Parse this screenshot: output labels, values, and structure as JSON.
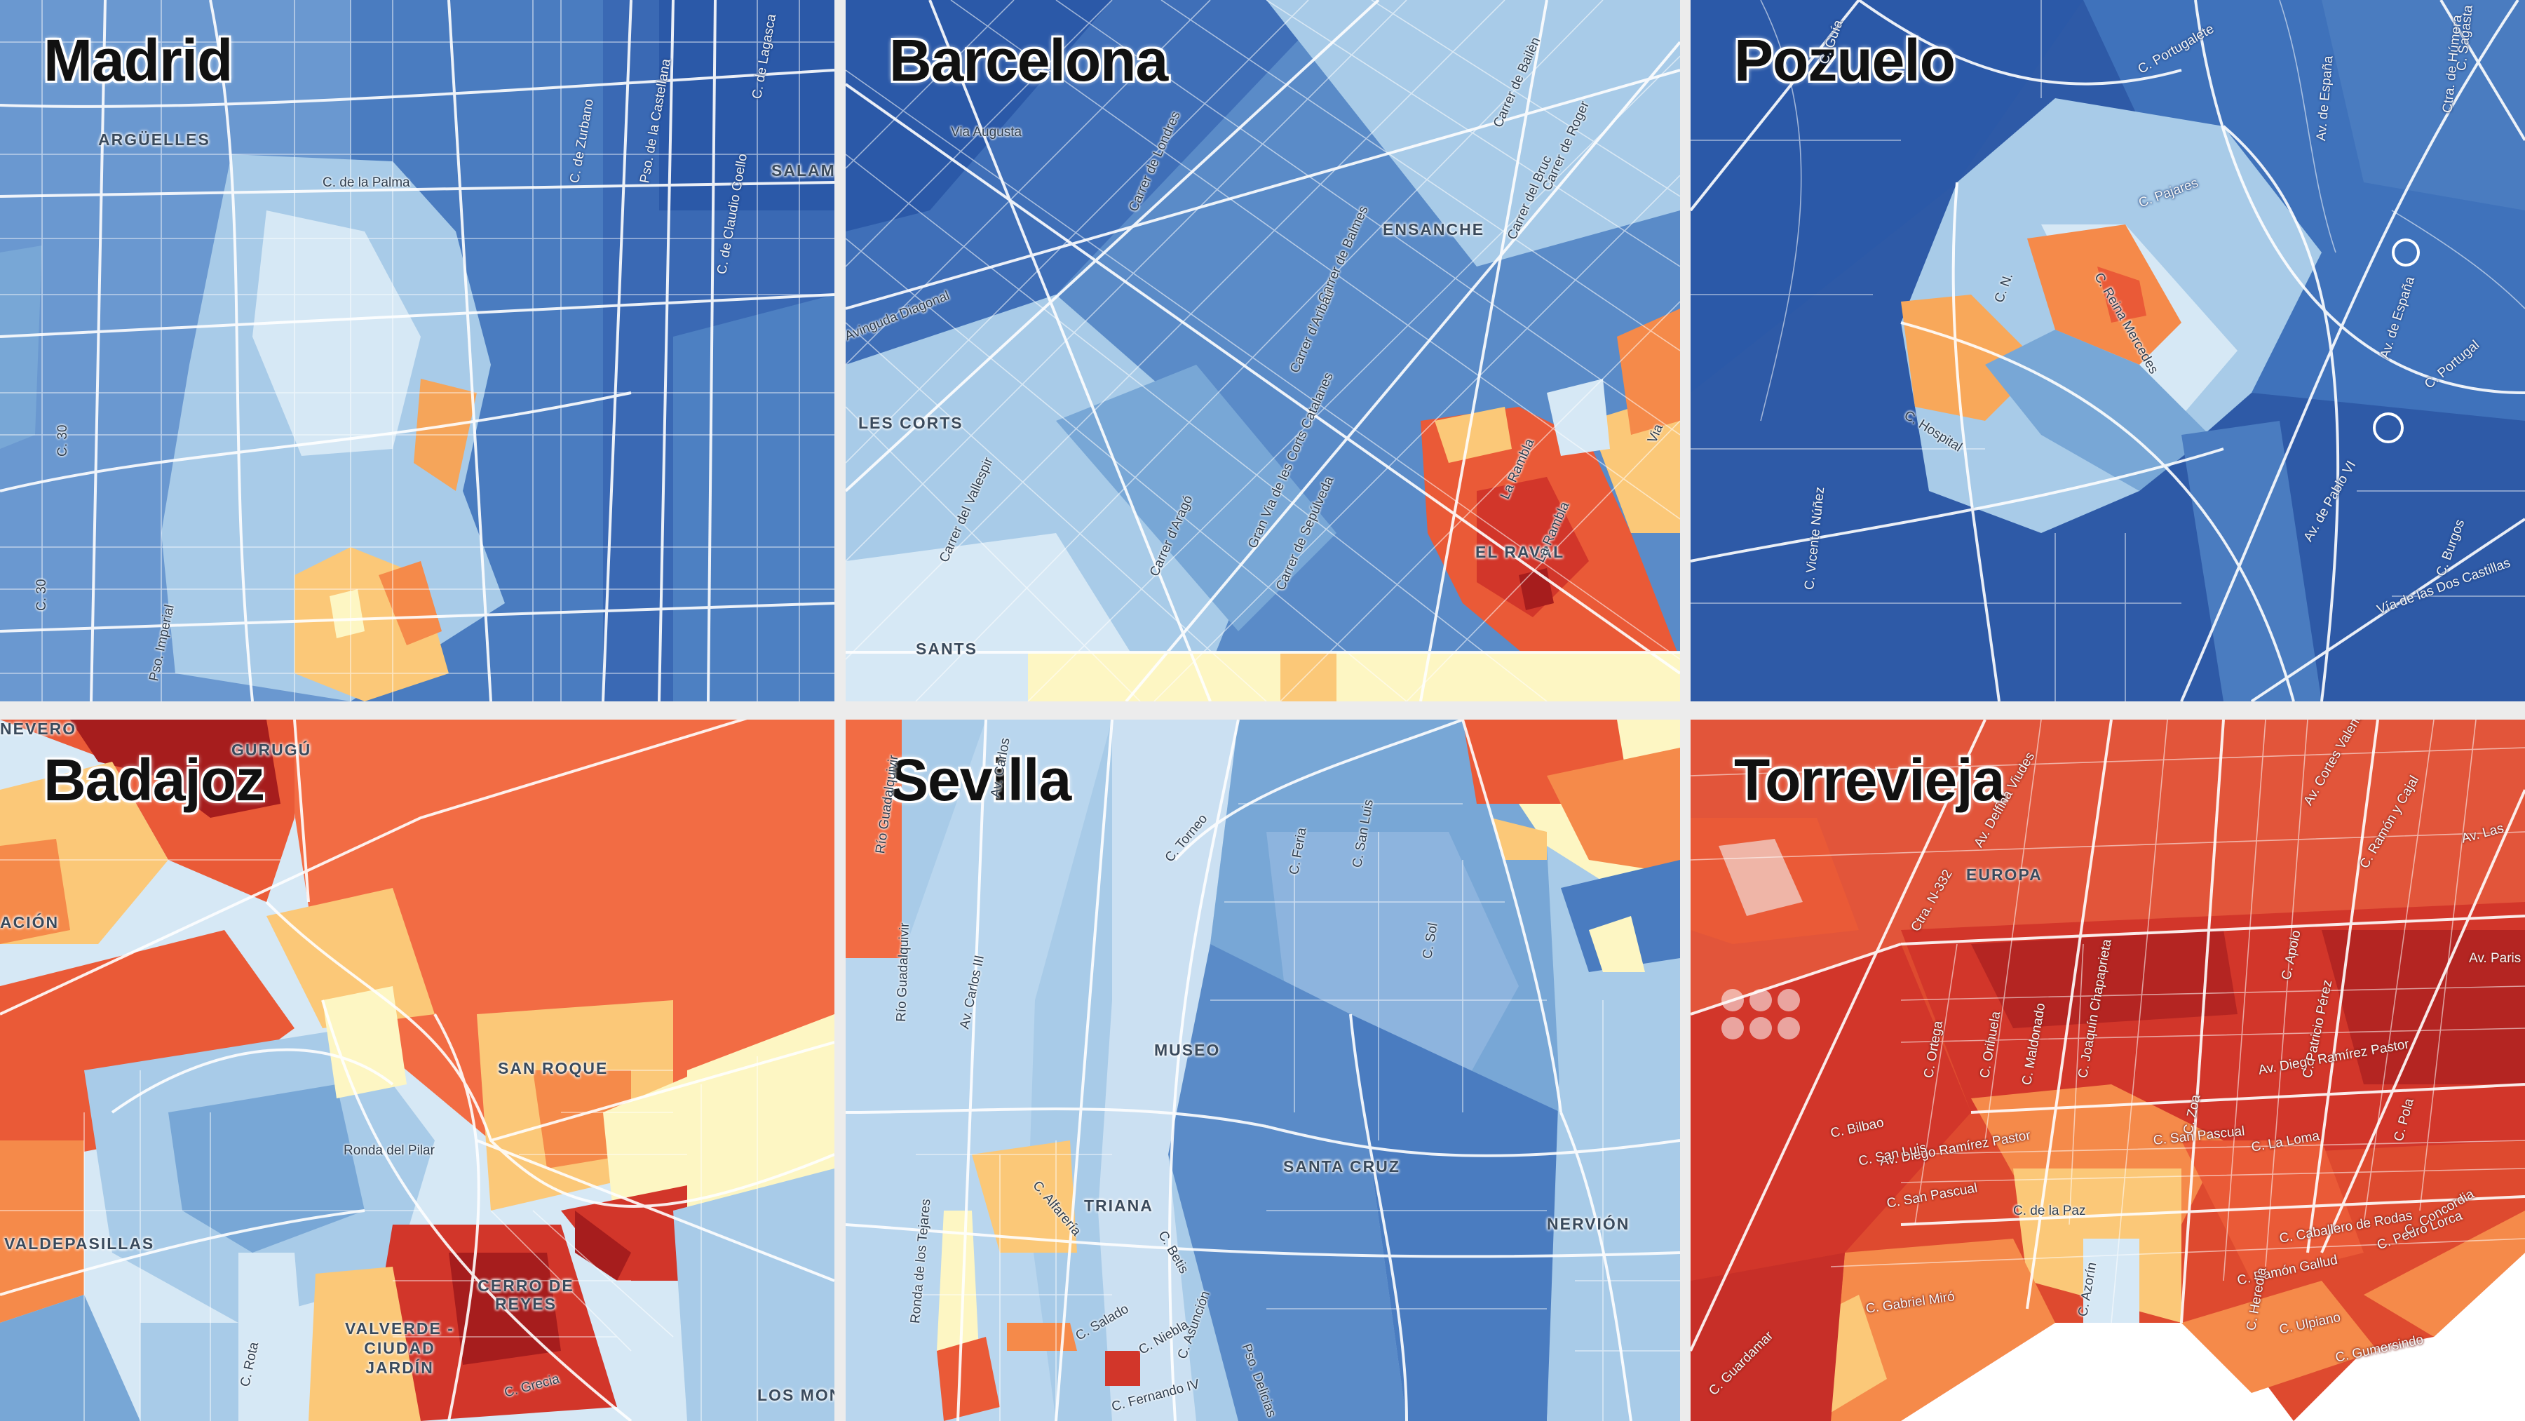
{
  "palette": {
    "deep_blue": "#2b59a8",
    "blue": "#4a7cc0",
    "mid_blue": "#78a7d6",
    "light_blue": "#a8cbe8",
    "pale_blue": "#d6e8f5",
    "pale_yellow": "#fdf6c3",
    "light_orange": "#fbc878",
    "orange": "#f58a4a",
    "red_orange": "#ea5a37",
    "red": "#d2362a",
    "dark_red": "#a61d1d",
    "street": "#ffffff",
    "gap": "#ececec"
  },
  "panels": [
    {
      "title": "Madrid",
      "neighborhoods": [
        "ARGÜELLES",
        "SALAM"
      ],
      "streets": [
        "C. de la Palma",
        "C. de Zurbano",
        "Pso. de la Castellana",
        "C. de Claudio Coello",
        "C. de Lagasca",
        "C. 30",
        "C. 30",
        "Pso. Imperial"
      ]
    },
    {
      "title": "Barcelona",
      "neighborhoods": [
        "ENSANCHE",
        "LES CORTS",
        "EL RAVAL",
        "SANTS"
      ],
      "streets": [
        "Via Augusta",
        "Carrer de Balmes",
        "Carrer de Londres",
        "Avinguda Diagonal",
        "Carrer d'Aribau",
        "Carrer del Vallespir",
        "Carrer d'Aragó",
        "Gran Via de les Corts Catalanes",
        "Carrer de Sepúlveda",
        "La Rambla",
        "La Rambla",
        "Carrer de Bailèn",
        "Carrer de Roger",
        "Carrer del Bruc",
        "Via"
      ]
    },
    {
      "title": "Pozuelo",
      "neighborhoods": [],
      "streets": [
        "C. Guía",
        "C. Portugalete",
        "C. Pajares",
        "Av. de España",
        "Av. de España",
        "Av. de Pablo VI",
        "C. Hospital",
        "C. Reina Mercedes",
        "C. N.",
        "C. Portugal",
        "C. Burgos",
        "Vía de las Dos Castillas",
        "C. Vicente Núñez",
        "Ctra. de Húmera",
        "C. Sagasta"
      ]
    },
    {
      "title": "Badajoz",
      "neighborhoods": [
        "GURUGÚ",
        "SAN ROQUE",
        "VALDEPASILLAS",
        "CERRO DE REYES",
        "VALVERDE - CIUDAD JARDÍN",
        "LOS MONTITOS",
        "ACIÓN",
        "NEVERO"
      ],
      "streets": [
        "Ronda del Pilar",
        "C. Rota",
        "C. Grecia"
      ]
    },
    {
      "title": "Sevilla",
      "neighborhoods": [
        "MUSEO",
        "TRIANA",
        "SANTA CRUZ",
        "NERVIÓN"
      ],
      "streets": [
        "Av. Carlos III",
        "Av. Carlos",
        "C. Torneo",
        "C. Feria",
        "C. San Luis",
        "C. Sol",
        "Ronda de los Tejares",
        "C. Alfarería",
        "C. Betis",
        "C. Salado",
        "C. Niebla",
        "C. Asunción",
        "C. Fernando IV",
        "Pso. Delicias",
        "Río Guadalquivir",
        "Río Guadalquivir"
      ]
    },
    {
      "title": "Torrevieja",
      "neighborhoods": [
        "EUROPA"
      ],
      "streets": [
        "Av. Delfina Viudes",
        "Av. Diego Ramírez Pastor",
        "Av. Diego Ramírez Pastor",
        "C. Bilbao",
        "C. San Luis",
        "C. San Pascual",
        "C. San Pascual",
        "C. de la Paz",
        "C. Gabriel Miró",
        "C. Azorín",
        "C. La Loma",
        "C. Caballero de Rodas",
        "C. Ramón Gallud",
        "C. Pedro Lorca",
        "C. Ulpiano",
        "C. Gumersindo",
        "C. Heredia",
        "C. Concordia",
        "C. Ortega",
        "C. Joaquín Chapaprieta",
        "C. Zoa",
        "C. Patricio Pérez",
        "C. Orihuela",
        "C. Apolo",
        "C. Maldonado",
        "C. Ramón y Cajal",
        "C. Pola",
        "Av. Paris",
        "Av. Las",
        "Av. Cortes Valencianas",
        "Ctra. N-332",
        "C. Guardamar"
      ]
    }
  ]
}
